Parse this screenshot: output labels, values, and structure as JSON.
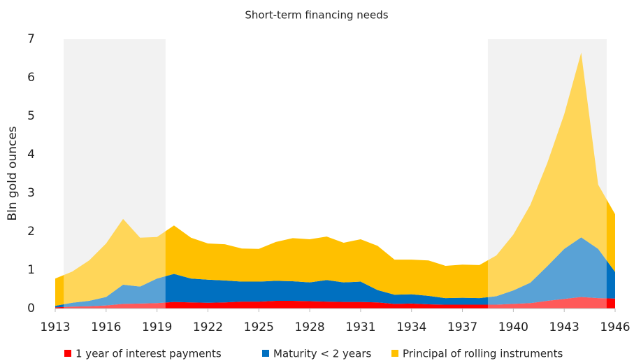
{
  "chart_data": {
    "type": "stacked-area",
    "title": "Short-term financing needs",
    "y_label": "Bln gold ounces",
    "x": [
      1913,
      1914,
      1915,
      1916,
      1917,
      1918,
      1919,
      1920,
      1921,
      1922,
      1923,
      1924,
      1925,
      1926,
      1927,
      1928,
      1929,
      1930,
      1931,
      1932,
      1933,
      1934,
      1935,
      1936,
      1937,
      1938,
      1939,
      1940,
      1941,
      1942,
      1943,
      1944,
      1945,
      1946
    ],
    "series": [
      {
        "name": "1 year of interest payments",
        "color": "#ff0000",
        "values": [
          0.03,
          0.05,
          0.06,
          0.08,
          0.12,
          0.13,
          0.14,
          0.17,
          0.16,
          0.15,
          0.16,
          0.18,
          0.18,
          0.2,
          0.2,
          0.19,
          0.18,
          0.17,
          0.17,
          0.16,
          0.12,
          0.13,
          0.11,
          0.1,
          0.1,
          0.1,
          0.1,
          0.12,
          0.14,
          0.2,
          0.25,
          0.3,
          0.27,
          0.26
        ]
      },
      {
        "name": "Maturity < 2 years",
        "color": "#0070c0",
        "values": [
          0.04,
          0.1,
          0.14,
          0.22,
          0.5,
          0.44,
          0.64,
          0.73,
          0.62,
          0.6,
          0.57,
          0.52,
          0.52,
          0.52,
          0.51,
          0.49,
          0.56,
          0.51,
          0.53,
          0.32,
          0.24,
          0.24,
          0.22,
          0.17,
          0.18,
          0.17,
          0.22,
          0.35,
          0.53,
          0.9,
          1.3,
          1.55,
          1.28,
          0.69
        ]
      },
      {
        "name": "Principal of rolling instruments",
        "color": "#ffc000",
        "values": [
          0.71,
          0.81,
          1.05,
          1.39,
          1.71,
          1.27,
          1.08,
          1.26,
          1.06,
          0.94,
          0.94,
          0.86,
          0.85,
          1.01,
          1.12,
          1.12,
          1.13,
          1.03,
          1.1,
          1.15,
          0.91,
          0.9,
          0.92,
          0.84,
          0.86,
          0.86,
          1.06,
          1.45,
          2.02,
          2.68,
          3.5,
          4.8,
          1.67,
          1.5
        ]
      }
    ],
    "shaded_ranges": [
      [
        1913.5,
        1919.5
      ],
      [
        1938.5,
        1945.5
      ]
    ],
    "xlim": [
      1913,
      1946
    ],
    "xticks": [
      1913,
      1916,
      1919,
      1922,
      1925,
      1928,
      1931,
      1934,
      1937,
      1940,
      1943,
      1946
    ],
    "ylim": [
      0,
      7
    ],
    "yticks": [
      0,
      1,
      2,
      3,
      4,
      5,
      6,
      7
    ],
    "legend": "bottom"
  }
}
